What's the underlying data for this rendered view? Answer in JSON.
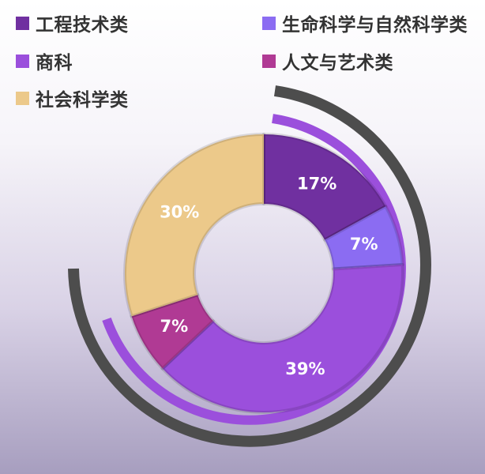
{
  "chart_data": {
    "type": "donut",
    "title": "",
    "categories": [
      "工程技术类",
      "生命科学与自然科学类",
      "商科",
      "人文与艺术类",
      "社会科学类"
    ],
    "values": [
      17,
      7,
      39,
      7,
      30
    ],
    "labels": [
      "17%",
      "7%",
      "39%",
      "7%",
      "30%"
    ],
    "colors": [
      "#7030a0",
      "#8b6cf2",
      "#9b4fdc",
      "#b03a94",
      "#ecc98a"
    ],
    "legend_position": "top",
    "ring_arc_colors": [
      "#4d4d4d",
      "#9b4fdc"
    ]
  }
}
